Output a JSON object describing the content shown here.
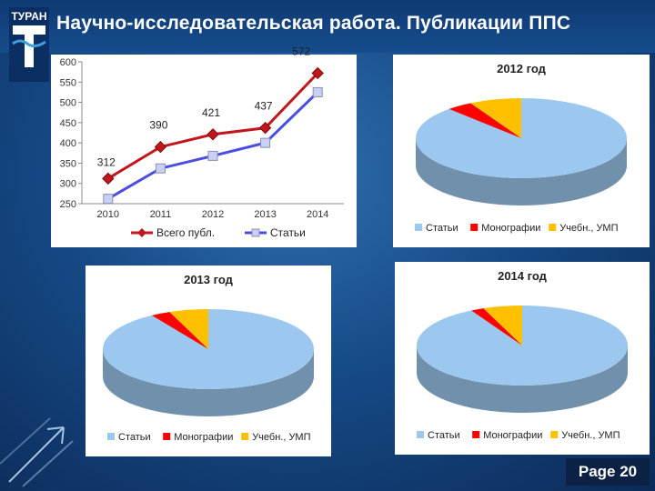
{
  "slide": {
    "title": "Научно-исследовательская работа. Публикации ППС",
    "page_label": "Page 20",
    "logo_text": "ТУРАН",
    "colors": {
      "background": "#164a86",
      "title": "#ffffff"
    }
  },
  "chart_data": [
    {
      "type": "line",
      "title": "",
      "categories": [
        "2010",
        "2011",
        "2012",
        "2013",
        "2014"
      ],
      "ylim": [
        250,
        600
      ],
      "yticks": [
        250,
        300,
        350,
        400,
        450,
        500,
        550,
        600
      ],
      "grid": false,
      "legend": "bottom",
      "series": [
        {
          "name": "Всего публ.",
          "values": [
            312,
            390,
            421,
            437,
            572
          ],
          "labels": [
            "312",
            "390",
            "421",
            "437",
            "572"
          ],
          "color": "#c0161c",
          "marker": "diamond"
        },
        {
          "name": "Статьи",
          "values": [
            262,
            337,
            368,
            400,
            525
          ],
          "color": "#4a4ee0",
          "marker": "square"
        }
      ]
    },
    {
      "type": "pie",
      "title": "2012 год",
      "legend": "bottom",
      "slices": [
        {
          "name": "Статьи",
          "value": 88,
          "color": "#9cc8ef"
        },
        {
          "name": "Монографии",
          "value": 4,
          "color": "#ff0000"
        },
        {
          "name": "Учебн., УМП",
          "value": 8,
          "color": "#ffc000"
        }
      ]
    },
    {
      "type": "pie",
      "title": "2013 год",
      "legend": "bottom",
      "slices": [
        {
          "name": "Статьи",
          "value": 91,
          "color": "#9cc8ef"
        },
        {
          "name": "Монографии",
          "value": 3,
          "color": "#ff0000"
        },
        {
          "name": "Учебн., УМП",
          "value": 6,
          "color": "#ffc000"
        }
      ]
    },
    {
      "type": "pie",
      "title": "2014 год",
      "legend": "bottom",
      "slices": [
        {
          "name": "Статьи",
          "value": 92,
          "color": "#9cc8ef"
        },
        {
          "name": "Монографии",
          "value": 2,
          "color": "#ff0000"
        },
        {
          "name": "Учебн., УМП",
          "value": 6,
          "color": "#ffc000"
        }
      ]
    }
  ]
}
